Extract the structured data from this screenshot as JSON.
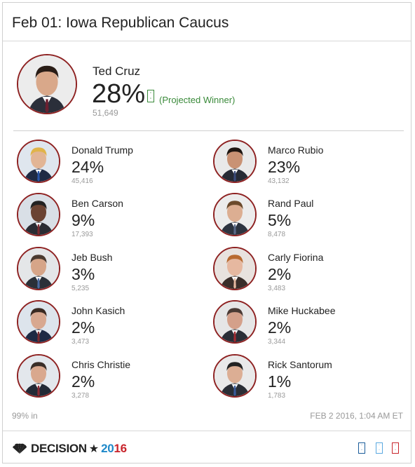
{
  "header": {
    "title": "Feb 01: Iowa Republican Caucus"
  },
  "winner": {
    "name": "Ted Cruz",
    "pct": "28%",
    "votes": "51,649",
    "badge": "Projected Winner",
    "badge_display": "(Projected Winner)",
    "color_accent": "#3a8a3a"
  },
  "candidates": [
    {
      "name": "Donald Trump",
      "pct": "24%",
      "votes": "45,416"
    },
    {
      "name": "Marco Rubio",
      "pct": "23%",
      "votes": "43,132"
    },
    {
      "name": "Ben Carson",
      "pct": "9%",
      "votes": "17,393"
    },
    {
      "name": "Rand Paul",
      "pct": "5%",
      "votes": "8,478"
    },
    {
      "name": "Jeb Bush",
      "pct": "3%",
      "votes": "5,235"
    },
    {
      "name": "Carly Fiorina",
      "pct": "2%",
      "votes": "3,483"
    },
    {
      "name": "John Kasich",
      "pct": "2%",
      "votes": "3,473"
    },
    {
      "name": "Mike Huckabee",
      "pct": "2%",
      "votes": "3,344"
    },
    {
      "name": "Chris Christie",
      "pct": "2%",
      "votes": "3,278"
    },
    {
      "name": "Rick Santorum",
      "pct": "1%",
      "votes": "1,783"
    }
  ],
  "status": {
    "reporting": "99% in",
    "updated": "FEB 2 2016, 1:04 AM ET"
  },
  "footer": {
    "logo_text": "DECISION",
    "logo_year": "2016",
    "logo_star_icon": "star-icon",
    "peacock_icon": "nbc-peacock-icon",
    "icons": [
      "race-call-icon-blue-dark",
      "race-call-icon-blue-light",
      "race-call-icon-red"
    ]
  },
  "colors": {
    "avatar_ring": "#8e2222",
    "year_blue": "#1e88c9",
    "year_red": "#c8242b"
  }
}
